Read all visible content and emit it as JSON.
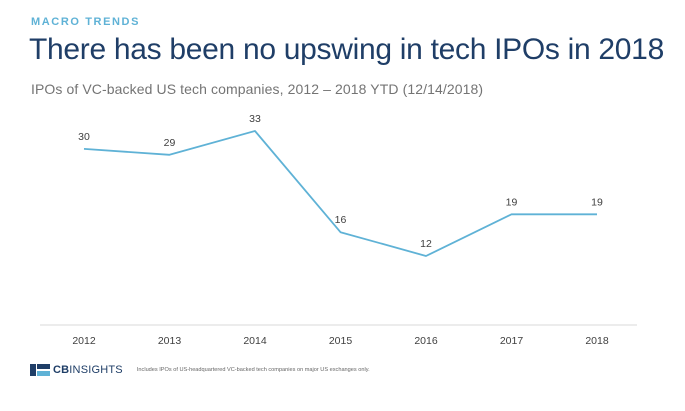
{
  "header": {
    "kicker": "MACRO TRENDS",
    "title": "There has been no upswing in tech IPOs in 2018",
    "subtitle": "IPOs of VC-backed US tech companies, 2012 – 2018 YTD (12/14/2018)"
  },
  "footer": {
    "logo_prefix": "CB",
    "logo_suffix": "INSIGHTS",
    "note": "Includes IPOs of US-headquartered VC-backed tech companies on major US exchanges only."
  },
  "colors": {
    "kicker": "#5fb2d6",
    "title": "#1f3e67",
    "line": "#5fb2d6",
    "axis": "#d9d9d9",
    "label": "#404040"
  },
  "chart_data": {
    "type": "line",
    "title": "There has been no upswing in tech IPOs in 2018",
    "subtitle": "IPOs of VC-backed US tech companies, 2012 – 2018 YTD (12/14/2018)",
    "categories": [
      "2012",
      "2013",
      "2014",
      "2015",
      "2016",
      "2017",
      "2018"
    ],
    "values": [
      30,
      29,
      33,
      16,
      12,
      19,
      19
    ],
    "data_labels": true,
    "ylim": [
      0,
      33
    ],
    "xlabel": "",
    "ylabel": "",
    "grid": false,
    "legend": "none"
  }
}
